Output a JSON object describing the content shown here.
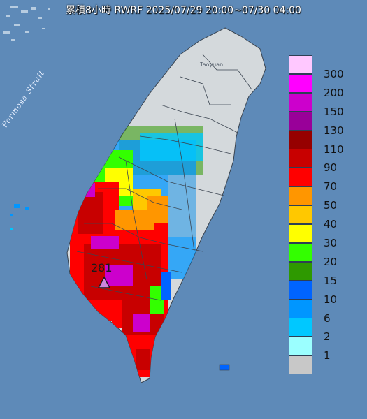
{
  "title": "累積8小時 RWRF 2025/07/29 20:00~07/30 04:00",
  "labels": {
    "strait": "Formosa Strait",
    "taoyuan": "Taoyuan",
    "peak_value": "281"
  },
  "legend": [
    {
      "label": "300",
      "color": "#ffc8ff"
    },
    {
      "label": "200",
      "color": "#ff00ff"
    },
    {
      "label": "150",
      "color": "#cc00cc"
    },
    {
      "label": "130",
      "color": "#990099"
    },
    {
      "label": "110",
      "color": "#960000"
    },
    {
      "label": "90",
      "color": "#c80000"
    },
    {
      "label": "70",
      "color": "#ff0000"
    },
    {
      "label": "50",
      "color": "#ff9600"
    },
    {
      "label": "40",
      "color": "#ffc800"
    },
    {
      "label": "30",
      "color": "#ffff00"
    },
    {
      "label": "20",
      "color": "#33ff00"
    },
    {
      "label": "15",
      "color": "#2e9900"
    },
    {
      "label": "10",
      "color": "#0064ff"
    },
    {
      "label": "6",
      "color": "#0096ff"
    },
    {
      "label": "2",
      "color": "#00c8ff"
    },
    {
      "label": "1",
      "color": "#9bffff"
    },
    {
      "label": "",
      "color": "#c8c8c8"
    }
  ]
}
